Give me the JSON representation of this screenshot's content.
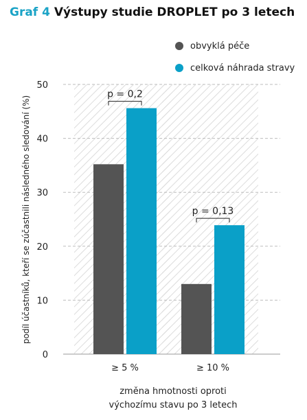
{
  "chart_data": {
    "type": "bar",
    "title": "Graf 4 Výstupy studie DROPLET po 3 letech",
    "title_prefix": "Graf 4",
    "title_main": "Výstupy studie DROPLET po 3 letech",
    "categories": [
      "≥ 5 %",
      "≥ 10 %"
    ],
    "series": [
      {
        "name": "obvyklá péče",
        "values": [
          35.2,
          13.0
        ],
        "color": "#545454"
      },
      {
        "name": "celková náhrada stravy",
        "values": [
          45.6,
          23.9
        ],
        "color": "#0aa0c8"
      }
    ],
    "annotations": [
      "p = 0,2",
      "p = 0,13"
    ],
    "ylim": [
      0,
      50
    ],
    "yticks": [
      "0",
      "10",
      "20",
      "30",
      "40",
      "50"
    ],
    "xlabel_lines": [
      "změna hmotnosti oproti",
      "výchozímu stavu po 3 letech"
    ],
    "ylabel": "podíl účastníků, kteří se zúčastnili následného sledování (%)",
    "grid": true,
    "legend_position": "top-right"
  }
}
